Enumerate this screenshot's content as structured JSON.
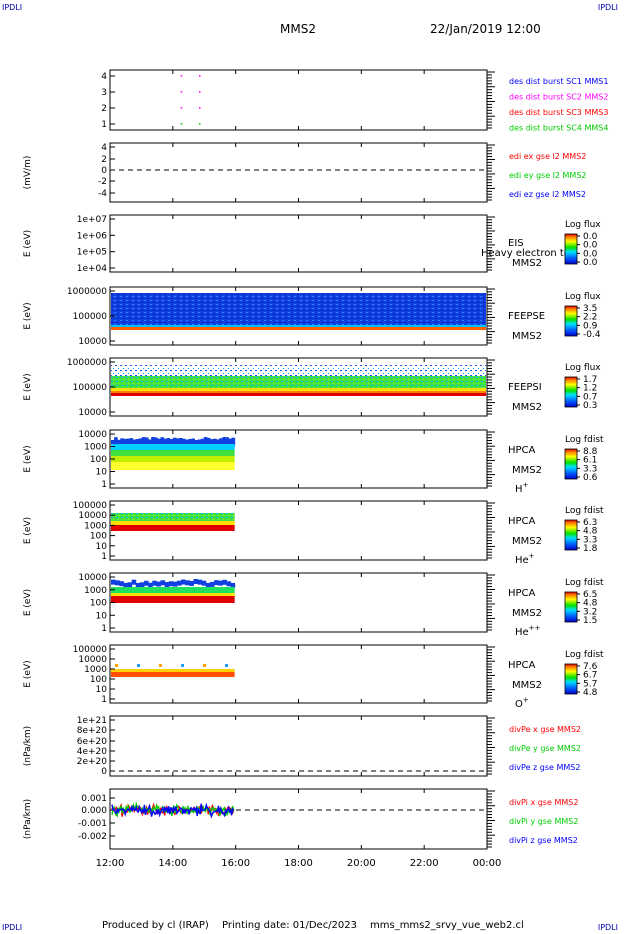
{
  "corner_label": "IPDLI",
  "header": {
    "spacecraft": "MMS2",
    "date": "22/Jan/2019 12:00"
  },
  "footer": {
    "producer": "Produced by cl (IRAP)",
    "print_date": "Printing date: 01/Dec/2023",
    "filename": "mms_mms2_srvy_vue_web2.cl"
  },
  "time_axis": {
    "labels": [
      "12:00",
      "14:00",
      "16:00",
      "18:00",
      "20:00",
      "22:00",
      "00:00"
    ],
    "start_hour": 12,
    "end_hour": 24
  },
  "panels": [
    {
      "id": "burst",
      "ylabel": "",
      "ticks": [
        "1",
        "2",
        "3",
        "4"
      ],
      "legend": [
        {
          "text": "des dist burst SC1 MMS1",
          "color": "#0000ff"
        },
        {
          "text": "des dist burst SC2 MMS2",
          "color": "#ff00ff"
        },
        {
          "text": "des dist burst SC3 MMS3",
          "color": "#ff0000"
        },
        {
          "text": "des dist burst SC4 MMS4",
          "color": "#00cc00"
        }
      ]
    },
    {
      "id": "edi",
      "ylabel": "(mV/m)",
      "ticks": [
        "4",
        "2",
        "0",
        "-2",
        "-4"
      ],
      "legend": [
        {
          "text": "edi ex gse l2 MMS2",
          "color": "#ff0000"
        },
        {
          "text": "edi ey gse l2 MMS2",
          "color": "#00cc00"
        },
        {
          "text": "edi ez gse l2 MMS2",
          "color": "#0000ff"
        }
      ]
    },
    {
      "id": "eis",
      "ylabel": "E (eV)",
      "ticks": [
        "1e+07",
        "1e+06",
        "1e+05",
        "1e+04"
      ],
      "instrument": "EIS",
      "spacecraft": "MMS2",
      "overlay": "Heavy electron to",
      "colorbar_title": "Log flux",
      "colorbar_ticks": [
        "0.0",
        "0.0",
        "0.0",
        "0.0"
      ]
    },
    {
      "id": "feepse",
      "ylabel": "E (eV)",
      "ticks": [
        "1000000",
        "100000",
        "10000"
      ],
      "instrument": "FEEPSE",
      "spacecraft": "MMS2",
      "colorbar_title": "Log flux",
      "colorbar_ticks": [
        "3.5",
        "2.2",
        "0.9",
        "-0.4"
      ]
    },
    {
      "id": "feepsi",
      "ylabel": "E (eV)",
      "ticks": [
        "1000000",
        "100000",
        "10000"
      ],
      "instrument": "FEEPSI",
      "spacecraft": "MMS2",
      "colorbar_title": "Log flux",
      "colorbar_ticks": [
        "1.7",
        "1.2",
        "0.7",
        "0.3"
      ]
    },
    {
      "id": "hpca_h",
      "ylabel": "E (eV)",
      "ticks": [
        "10000",
        "1000",
        "100",
        "10",
        "1"
      ],
      "instrument": "HPCA",
      "spacecraft": "MMS2",
      "species": "H",
      "species_sup": "+",
      "colorbar_title": "Log fdist",
      "colorbar_ticks": [
        "8.8",
        "6.1",
        "3.3",
        "0.6"
      ]
    },
    {
      "id": "hpca_he",
      "ylabel": "E (eV)",
      "ticks": [
        "100000",
        "10000",
        "1000",
        "100",
        "10",
        "1"
      ],
      "instrument": "HPCA",
      "spacecraft": "MMS2",
      "species": "He",
      "species_sup": "+",
      "colorbar_title": "Log fdist",
      "colorbar_ticks": [
        "6.3",
        "4.8",
        "3.3",
        "1.8"
      ]
    },
    {
      "id": "hpca_hepp",
      "ylabel": "E (eV)",
      "ticks": [
        "10000",
        "1000",
        "100",
        "10",
        "1"
      ],
      "instrument": "HPCA",
      "spacecraft": "MMS2",
      "species": "He",
      "species_sup": "++",
      "colorbar_title": "Log fdist",
      "colorbar_ticks": [
        "6.5",
        "4.8",
        "3.2",
        "1.5"
      ]
    },
    {
      "id": "hpca_o",
      "ylabel": "E (eV)",
      "ticks": [
        "100000",
        "10000",
        "1000",
        "100",
        "10",
        "1"
      ],
      "instrument": "HPCA",
      "spacecraft": "MMS2",
      "species": "O",
      "species_sup": "+",
      "colorbar_title": "Log fdist",
      "colorbar_ticks": [
        "7.6",
        "6.7",
        "5.7",
        "4.8"
      ]
    },
    {
      "id": "divpe",
      "ylabel": "(nPa/km)",
      "ticks": [
        "1e+21",
        "8e+20",
        "6e+20",
        "4e+20",
        "2e+20",
        "0"
      ],
      "legend": [
        {
          "text": "divPe x gse MMS2",
          "color": "#ff0000"
        },
        {
          "text": "divPe y gse MMS2",
          "color": "#00cc00"
        },
        {
          "text": "divPe z gse MMS2",
          "color": "#0000ff"
        }
      ]
    },
    {
      "id": "divpi",
      "ylabel": "(nPa/km)",
      "ticks": [
        "0.001",
        "0.000",
        "-0.001",
        "-0.002"
      ],
      "legend": [
        {
          "text": "divPi x gse MMS2",
          "color": "#ff0000"
        },
        {
          "text": "divPi y gse MMS2",
          "color": "#00cc00"
        },
        {
          "text": "divPi z gse MMS2",
          "color": "#0000ff"
        }
      ]
    }
  ],
  "chart_data": {
    "type": "heatmap",
    "title": "MMS2 22/Jan/2019 12:00",
    "x_range": [
      "12:00",
      "00:00"
    ],
    "data_coverage_end": "16:00",
    "burst_intervals": [
      {
        "spacecraft": "MMS1",
        "times": [
          "14:15",
          "14:50"
        ]
      },
      {
        "spacecraft": "MMS2",
        "times": [
          "14:15",
          "14:50"
        ]
      },
      {
        "spacecraft": "MMS3",
        "times": [
          "14:15",
          "14:50"
        ]
      },
      {
        "spacecraft": "MMS4",
        "times": [
          "14:15",
          "14:50"
        ]
      }
    ],
    "colors": {
      "dashed_zero": "#000000",
      "grid": "none"
    }
  }
}
